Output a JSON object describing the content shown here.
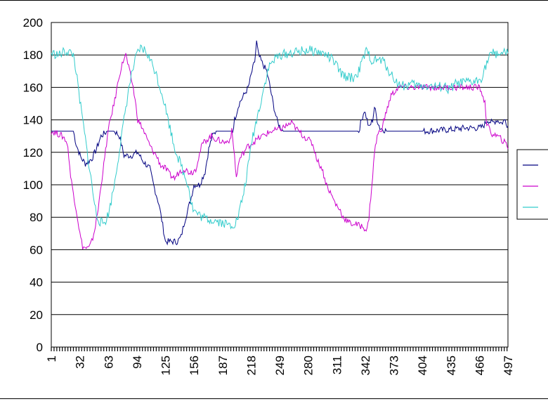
{
  "chart_data": {
    "type": "line",
    "title": "",
    "xlabel": "",
    "ylabel": "",
    "ylim": [
      0,
      200
    ],
    "yticks": [
      0,
      20,
      40,
      60,
      80,
      100,
      120,
      140,
      160,
      180,
      200
    ],
    "xlim": [
      1,
      497
    ],
    "xticks": [
      1,
      32,
      63,
      94,
      125,
      156,
      187,
      218,
      249,
      280,
      311,
      342,
      373,
      404,
      435,
      466,
      497
    ],
    "grid": "horizontal",
    "legend": "right",
    "series": [
      {
        "color": "#000080",
        "points": [
          [
            1,
            133
          ],
          [
            25,
            133
          ],
          [
            28,
            125
          ],
          [
            33,
            117
          ],
          [
            38,
            113
          ],
          [
            45,
            116
          ],
          [
            50,
            122
          ],
          [
            55,
            130
          ],
          [
            62,
            133
          ],
          [
            70,
            133
          ],
          [
            75,
            130
          ],
          [
            80,
            118
          ],
          [
            88,
            118
          ],
          [
            95,
            120
          ],
          [
            100,
            115
          ],
          [
            108,
            110
          ],
          [
            112,
            100
          ],
          [
            118,
            88
          ],
          [
            122,
            75
          ],
          [
            125,
            65
          ],
          [
            138,
            65
          ],
          [
            142,
            68
          ],
          [
            146,
            78
          ],
          [
            152,
            90
          ],
          [
            156,
            100
          ],
          [
            162,
            100
          ],
          [
            168,
            108
          ],
          [
            172,
            122
          ],
          [
            176,
            130
          ],
          [
            180,
            133
          ],
          [
            198,
            133
          ],
          [
            200,
            140
          ],
          [
            205,
            150
          ],
          [
            210,
            155
          ],
          [
            215,
            160
          ],
          [
            219,
            170
          ],
          [
            222,
            176
          ],
          [
            224,
            188
          ],
          [
            226,
            180
          ],
          [
            230,
            175
          ],
          [
            235,
            170
          ],
          [
            238,
            162
          ],
          [
            242,
            150
          ],
          [
            246,
            140
          ],
          [
            249,
            136
          ],
          [
            253,
            133
          ],
          [
            335,
            133
          ],
          [
            338,
            140
          ],
          [
            341,
            146
          ],
          [
            344,
            140
          ],
          [
            346,
            135
          ],
          [
            350,
            140
          ],
          [
            352,
            148
          ],
          [
            355,
            140
          ],
          [
            358,
            135
          ],
          [
            362,
            134
          ],
          [
            366,
            133
          ],
          [
            405,
            133
          ],
          [
            435,
            134
          ],
          [
            450,
            135
          ],
          [
            466,
            135
          ],
          [
            470,
            136
          ],
          [
            475,
            140
          ],
          [
            480,
            138
          ],
          [
            485,
            140
          ],
          [
            490,
            138
          ],
          [
            494,
            140
          ],
          [
            497,
            136
          ]
        ]
      },
      {
        "color": "#CC00CC",
        "points": [
          [
            1,
            133
          ],
          [
            10,
            131
          ],
          [
            15,
            129
          ],
          [
            18,
            126
          ],
          [
            20,
            118
          ],
          [
            22,
            105
          ],
          [
            25,
            95
          ],
          [
            28,
            85
          ],
          [
            30,
            78
          ],
          [
            32,
            70
          ],
          [
            35,
            62
          ],
          [
            38,
            61
          ],
          [
            42,
            61
          ],
          [
            45,
            65
          ],
          [
            48,
            72
          ],
          [
            52,
            85
          ],
          [
            55,
            100
          ],
          [
            58,
            112
          ],
          [
            62,
            130
          ],
          [
            65,
            140
          ],
          [
            70,
            152
          ],
          [
            75,
            168
          ],
          [
            80,
            178
          ],
          [
            82,
            180
          ],
          [
            85,
            172
          ],
          [
            88,
            165
          ],
          [
            90,
            160
          ],
          [
            95,
            140
          ],
          [
            100,
            135
          ],
          [
            105,
            128
          ],
          [
            110,
            122
          ],
          [
            115,
            118
          ],
          [
            120,
            112
          ],
          [
            125,
            110
          ],
          [
            130,
            106
          ],
          [
            135,
            104
          ],
          [
            140,
            108
          ],
          [
            145,
            110
          ],
          [
            150,
            108
          ],
          [
            155,
            108
          ],
          [
            158,
            110
          ],
          [
            160,
            115
          ],
          [
            165,
            125
          ],
          [
            170,
            128
          ],
          [
            175,
            130
          ],
          [
            180,
            128
          ],
          [
            190,
            126
          ],
          [
            195,
            128
          ],
          [
            197,
            133
          ],
          [
            198,
            128
          ],
          [
            200,
            118
          ],
          [
            202,
            104
          ],
          [
            205,
            115
          ],
          [
            210,
            120
          ],
          [
            215,
            124
          ],
          [
            220,
            126
          ],
          [
            225,
            128
          ],
          [
            230,
            130
          ],
          [
            240,
            133
          ],
          [
            249,
            134
          ],
          [
            255,
            136
          ],
          [
            262,
            138
          ],
          [
            268,
            134
          ],
          [
            275,
            130
          ],
          [
            280,
            128
          ],
          [
            285,
            125
          ],
          [
            290,
            115
          ],
          [
            295,
            110
          ],
          [
            300,
            100
          ],
          [
            305,
            94
          ],
          [
            310,
            88
          ],
          [
            315,
            84
          ],
          [
            318,
            80
          ],
          [
            322,
            78
          ],
          [
            326,
            76
          ],
          [
            330,
            76
          ],
          [
            335,
            75
          ],
          [
            340,
            74
          ],
          [
            344,
            72
          ],
          [
            346,
            80
          ],
          [
            350,
            105
          ],
          [
            352,
            120
          ],
          [
            355,
            130
          ],
          [
            360,
            135
          ],
          [
            365,
            145
          ],
          [
            370,
            155
          ],
          [
            375,
            158
          ],
          [
            378,
            160
          ],
          [
            466,
            160
          ],
          [
            470,
            155
          ],
          [
            472,
            150
          ],
          [
            474,
            138
          ],
          [
            478,
            132
          ],
          [
            485,
            130
          ],
          [
            490,
            128
          ],
          [
            495,
            125
          ],
          [
            497,
            122
          ]
        ]
      },
      {
        "color": "#33CCCC",
        "points": [
          [
            1,
            181
          ],
          [
            10,
            180
          ],
          [
            15,
            182
          ],
          [
            20,
            182
          ],
          [
            25,
            180
          ],
          [
            28,
            170
          ],
          [
            30,
            160
          ],
          [
            35,
            140
          ],
          [
            40,
            120
          ],
          [
            45,
            100
          ],
          [
            48,
            88
          ],
          [
            50,
            82
          ],
          [
            53,
            78
          ],
          [
            57,
            76
          ],
          [
            60,
            78
          ],
          [
            63,
            82
          ],
          [
            66,
            90
          ],
          [
            70,
            102
          ],
          [
            74,
            118
          ],
          [
            78,
            132
          ],
          [
            82,
            148
          ],
          [
            86,
            162
          ],
          [
            90,
            172
          ],
          [
            94,
            180
          ],
          [
            98,
            184
          ],
          [
            102,
            183
          ],
          [
            106,
            180
          ],
          [
            110,
            175
          ],
          [
            114,
            170
          ],
          [
            118,
            162
          ],
          [
            122,
            155
          ],
          [
            126,
            145
          ],
          [
            130,
            135
          ],
          [
            134,
            125
          ],
          [
            138,
            118
          ],
          [
            142,
            112
          ],
          [
            146,
            105
          ],
          [
            150,
            100
          ],
          [
            152,
            92
          ],
          [
            155,
            85
          ],
          [
            160,
            82
          ],
          [
            165,
            80
          ],
          [
            170,
            79
          ],
          [
            180,
            78
          ],
          [
            185,
            77
          ],
          [
            190,
            76
          ],
          [
            195,
            75
          ],
          [
            200,
            76
          ],
          [
            204,
            80
          ],
          [
            207,
            88
          ],
          [
            210,
            95
          ],
          [
            213,
            105
          ],
          [
            216,
            115
          ],
          [
            218,
            125
          ],
          [
            222,
            135
          ],
          [
            226,
            145
          ],
          [
            230,
            155
          ],
          [
            234,
            165
          ],
          [
            237,
            172
          ],
          [
            240,
            175
          ],
          [
            245,
            178
          ],
          [
            250,
            180
          ],
          [
            260,
            181
          ],
          [
            270,
            182
          ],
          [
            280,
            183
          ],
          [
            290,
            182
          ],
          [
            300,
            180
          ],
          [
            308,
            176
          ],
          [
            312,
            172
          ],
          [
            316,
            168
          ],
          [
            320,
            167
          ],
          [
            325,
            166
          ],
          [
            330,
            166
          ],
          [
            335,
            170
          ],
          [
            340,
            178
          ],
          [
            343,
            182
          ],
          [
            346,
            180
          ],
          [
            350,
            176
          ],
          [
            356,
            177
          ],
          [
            362,
            176
          ],
          [
            366,
            172
          ],
          [
            370,
            168
          ],
          [
            374,
            165
          ],
          [
            378,
            162
          ],
          [
            385,
            161
          ],
          [
            392,
            162
          ],
          [
            400,
            161
          ],
          [
            410,
            161
          ],
          [
            420,
            160
          ],
          [
            428,
            161
          ],
          [
            432,
            158
          ],
          [
            436,
            160
          ],
          [
            440,
            162
          ],
          [
            450,
            163
          ],
          [
            458,
            163
          ],
          [
            464,
            164
          ],
          [
            468,
            166
          ],
          [
            472,
            172
          ],
          [
            476,
            178
          ],
          [
            480,
            181
          ],
          [
            488,
            181
          ],
          [
            497,
            181
          ]
        ]
      }
    ]
  }
}
